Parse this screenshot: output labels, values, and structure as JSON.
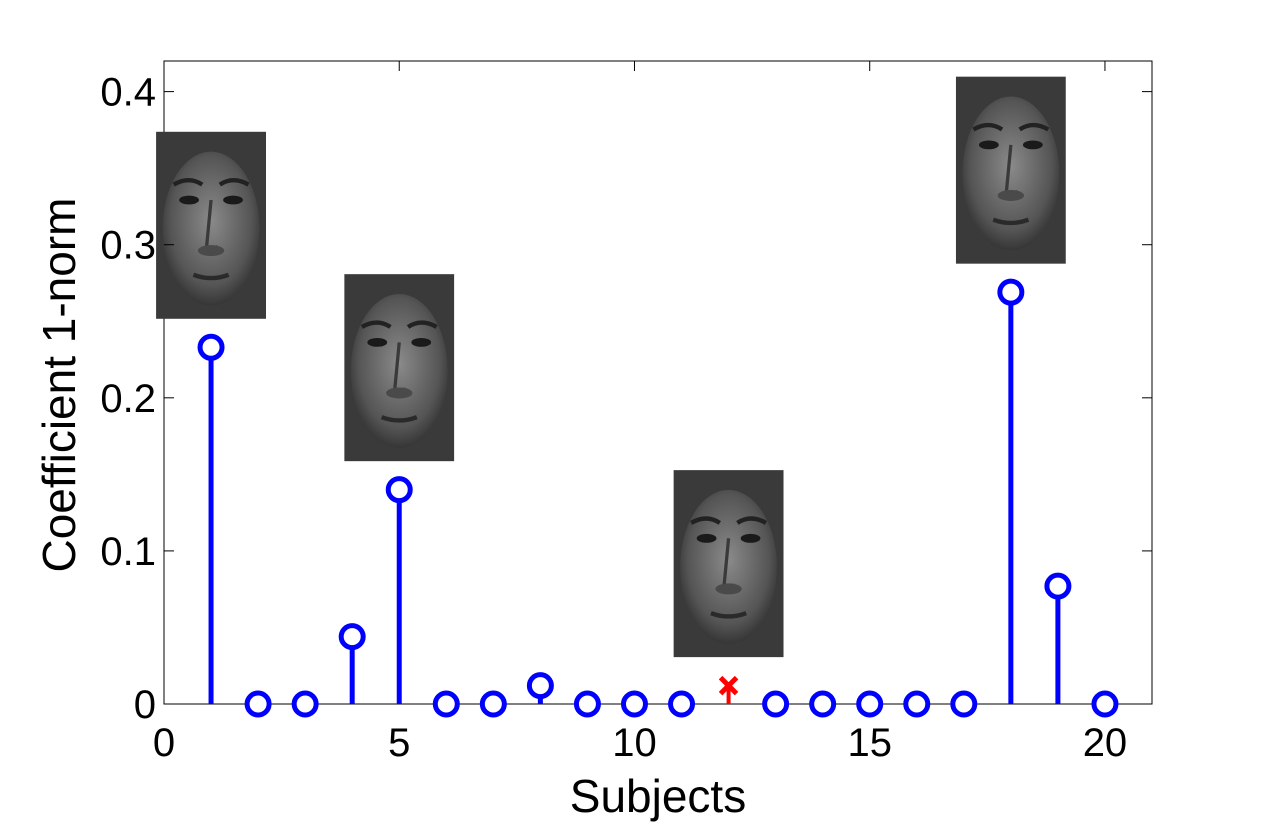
{
  "chart_data": {
    "type": "stem",
    "xlabel": "Subjects",
    "ylabel": "Coefficient 1-norm",
    "xlim": [
      0,
      21
    ],
    "ylim": [
      0,
      0.42
    ],
    "xticks": [
      0,
      5,
      10,
      15,
      20
    ],
    "yticks": [
      0,
      0.1,
      0.2,
      0.3,
      0.4
    ],
    "xtick_labels": [
      "0",
      "5",
      "10",
      "15",
      "20"
    ],
    "ytick_labels": [
      "0",
      "0.1",
      "0.2",
      "0.3",
      "0.4"
    ],
    "grid": false,
    "series": [
      {
        "x": [
          1,
          2,
          3,
          4,
          5,
          6,
          7,
          8,
          9,
          10,
          11,
          13,
          14,
          15,
          16,
          17,
          18,
          19,
          20
        ],
        "values": [
          0.233,
          0,
          0,
          0.044,
          0.14,
          0,
          0,
          0.012,
          0,
          0,
          0,
          0,
          0,
          0,
          0,
          0,
          0.269,
          0.077,
          0
        ],
        "color": "#0000ff",
        "marker": "circle"
      }
    ],
    "highlight": {
      "x": 12,
      "value": 0.012,
      "marker": "x",
      "color": "#ff0000"
    },
    "face_thumbnails": [
      {
        "x": 1,
        "value": 0.233
      },
      {
        "x": 5,
        "value": 0.14
      },
      {
        "x": 12,
        "value": 0.012
      },
      {
        "x": 18,
        "value": 0.269
      }
    ]
  }
}
